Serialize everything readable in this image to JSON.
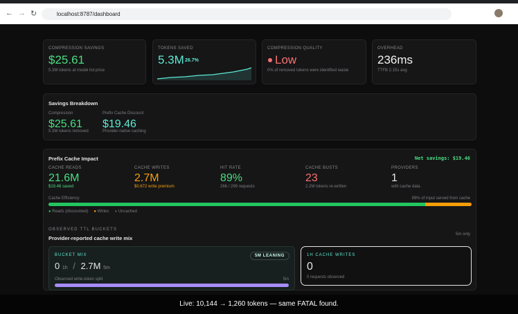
{
  "browser": {
    "url": "localhost:8787/dashboard"
  },
  "cards": [
    {
      "label": "COMPRESSION SAVINGS",
      "value": "$25.61",
      "sub": "5.3M tokens at model list price"
    },
    {
      "label": "TOKENS SAVED",
      "value": "5.3M",
      "badge": "26.7%"
    },
    {
      "label": "COMPRESSION QUALITY",
      "value": "Low",
      "sub": "0% of removed tokens were identified waste"
    },
    {
      "label": "OVERHEAD",
      "value": "236ms",
      "sub": "TTFB 2.15s avg"
    }
  ],
  "savings_breakdown": {
    "title": "Savings Breakdown",
    "items": [
      {
        "label": "Compression",
        "value": "$25.61",
        "sub": "5.3M tokens removed"
      },
      {
        "label": "Prefix Cache Discount",
        "value": "$19.46",
        "sub": "Provider-native caching"
      }
    ]
  },
  "prefix_cache": {
    "title": "Prefix Cache Impact",
    "net_savings": "Net savings: $19.46",
    "stats": [
      {
        "label": "CACHE READS",
        "value": "21.6M",
        "sub": "$19.46 saved"
      },
      {
        "label": "CACHE WRITES",
        "value": "2.7M",
        "sub": "$0.672 write premium"
      },
      {
        "label": "HIT RATE",
        "value": "89%",
        "sub": "266 / 299 requests"
      },
      {
        "label": "CACHE BUSTS",
        "value": "23",
        "sub": "2.2M tokens re-written"
      },
      {
        "label": "PROVIDERS",
        "value": "1",
        "sub": "with cache data"
      }
    ],
    "efficiency": {
      "label": "Cache Efficiency",
      "reads": {
        "value": 89,
        "label": "89% of input served from cache"
      }
    },
    "legend": [
      "Reads (discounted)",
      "Writes",
      "Uncached"
    ]
  },
  "ttl": {
    "heading": "OBSERVED TTL BUCKETS",
    "subtitle": "Provider-reported cache write mix",
    "note": "5m only",
    "bucket_mix": {
      "label": "BUCKET MIX",
      "badge": "5M LEANING",
      "h1_value": "0",
      "h1_unit": "1h",
      "separator": "/",
      "m5_value": "2.7M",
      "m5_unit": "5m",
      "split_label": "Observed write-token split",
      "split_unit": "5m"
    },
    "writes_1h": {
      "label": "1H CACHE WRITES",
      "value": "0",
      "sub": "0 requests observed"
    }
  },
  "caption": "Live: 10,144 → 1,260 tokens — same FATAL found."
}
